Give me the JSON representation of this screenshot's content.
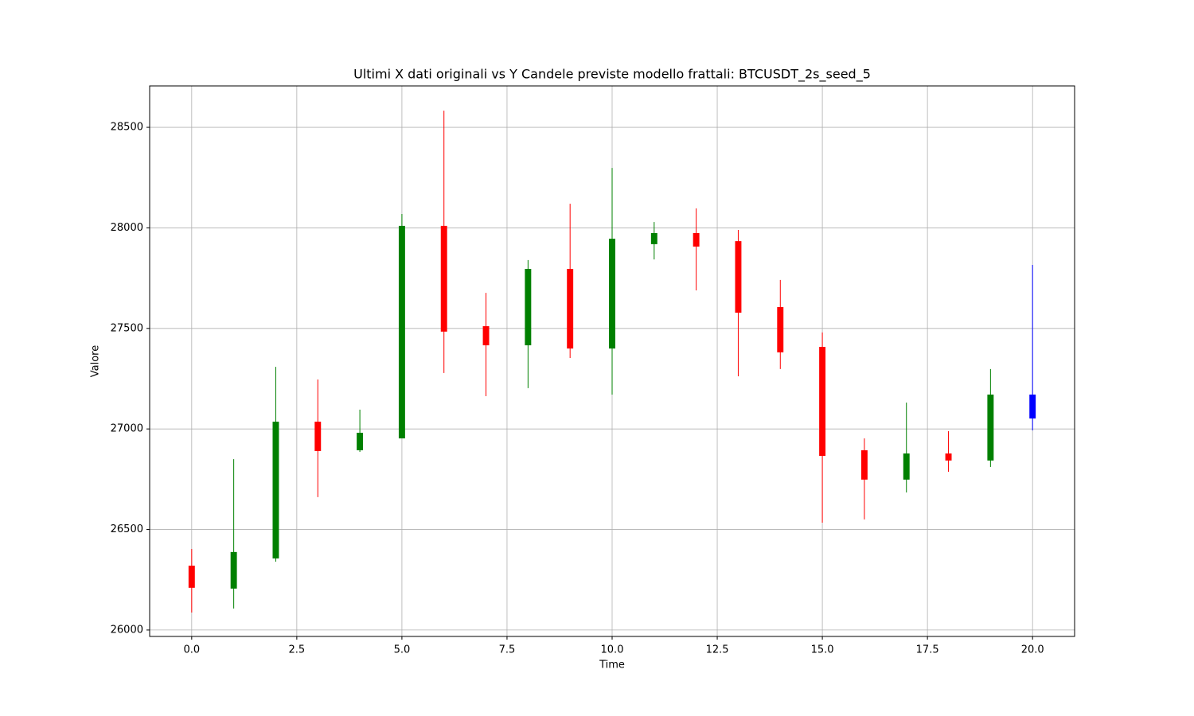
{
  "chart_data": {
    "type": "candlestick",
    "title": "Ultimi X dati originali vs Y Candele previste modello frattali: BTCUSDT_2s_seed_5",
    "x_label": "Time",
    "y_label": "Valore",
    "x": [
      0,
      1,
      2,
      3,
      4,
      5,
      6,
      7,
      8,
      9,
      10,
      11,
      12,
      13,
      14,
      15,
      16,
      17,
      18,
      19,
      20
    ],
    "open": [
      26320,
      26206,
      26356,
      27036,
      26894,
      26953,
      28010,
      27511,
      27416,
      27796,
      27400,
      27919,
      27974,
      27934,
      27606,
      27408,
      26894,
      26748,
      26878,
      26843,
      27052
    ],
    "high": [
      26403,
      26850,
      27309,
      27246,
      27096,
      28069,
      28583,
      27677,
      27840,
      28120,
      28298,
      28029,
      28097,
      27990,
      27741,
      27480,
      26953,
      27131,
      26989,
      27298,
      27816
    ],
    "low": [
      26087,
      26107,
      26340,
      26661,
      26886,
      26953,
      27278,
      27163,
      27203,
      27353,
      27171,
      27843,
      27689,
      27262,
      27298,
      26534,
      26550,
      26684,
      26787,
      26811,
      26993
    ],
    "close": [
      26210,
      26388,
      27036,
      26890,
      26981,
      28010,
      27484,
      27416,
      27796,
      27400,
      27946,
      27974,
      27907,
      27578,
      27381,
      26866,
      26748,
      26878,
      26843,
      27171,
      27171
    ],
    "colors": [
      "red",
      "green",
      "green",
      "red",
      "green",
      "green",
      "red",
      "red",
      "green",
      "red",
      "green",
      "green",
      "red",
      "red",
      "red",
      "red",
      "red",
      "green",
      "red",
      "green",
      "blue"
    ],
    "xlim": [
      -1,
      21
    ],
    "xticks": [
      {
        "value": 0,
        "label": "0.0"
      },
      {
        "value": 2.5,
        "label": "2.5"
      },
      {
        "value": 5,
        "label": "5.0"
      },
      {
        "value": 7.5,
        "label": "7.5"
      },
      {
        "value": 10,
        "label": "10.0"
      },
      {
        "value": 12.5,
        "label": "12.5"
      },
      {
        "value": 15,
        "label": "15.0"
      },
      {
        "value": 17.5,
        "label": "17.5"
      },
      {
        "value": 20,
        "label": "20.0"
      }
    ],
    "ylim": [
      25968,
      28706
    ],
    "yticks": [
      26000,
      26500,
      27000,
      27500,
      28000,
      28500
    ],
    "grid": true
  }
}
